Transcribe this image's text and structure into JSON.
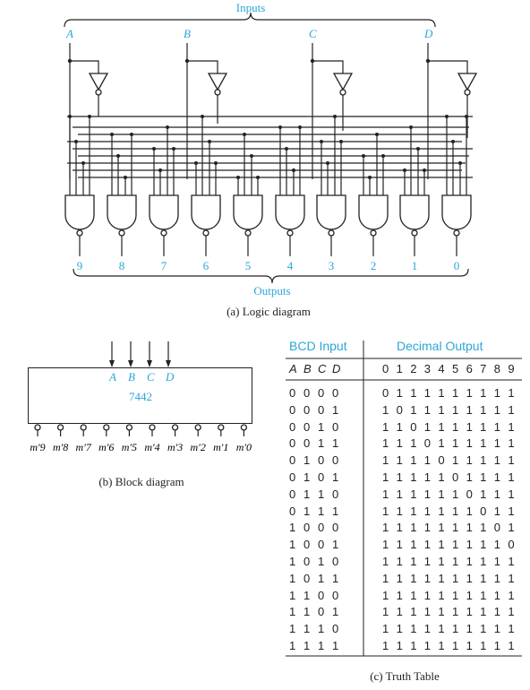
{
  "logic_diagram": {
    "inputs_label": "Inputs",
    "input_names": [
      "A",
      "B",
      "C",
      "D"
    ],
    "outputs_label": "Outputs",
    "output_numbers": [
      "9",
      "8",
      "7",
      "6",
      "5",
      "4",
      "3",
      "2",
      "1",
      "0"
    ],
    "caption": "(a) Logic diagram"
  },
  "block_diagram": {
    "chip": "7442",
    "inputs": [
      "A",
      "B",
      "C",
      "D"
    ],
    "outputs": [
      "m′9",
      "m′8",
      "m′7",
      "m′6",
      "m′5",
      "m′4",
      "m′3",
      "m′2",
      "m′1",
      "m′0"
    ],
    "caption": "(b) Block diagram"
  },
  "truth_table": {
    "bcd_header": "BCD Input",
    "decimal_header": "Decimal Output",
    "bcd_columns": [
      "A",
      "B",
      "C",
      "D"
    ],
    "decimal_columns": [
      "0",
      "1",
      "2",
      "3",
      "4",
      "5",
      "6",
      "7",
      "8",
      "9"
    ],
    "rows": [
      {
        "bcd": [
          "0",
          "0",
          "0",
          "0"
        ],
        "out": [
          "0",
          "1",
          "1",
          "1",
          "1",
          "1",
          "1",
          "1",
          "1",
          "1"
        ]
      },
      {
        "bcd": [
          "0",
          "0",
          "0",
          "1"
        ],
        "out": [
          "1",
          "0",
          "1",
          "1",
          "1",
          "1",
          "1",
          "1",
          "1",
          "1"
        ]
      },
      {
        "bcd": [
          "0",
          "0",
          "1",
          "0"
        ],
        "out": [
          "1",
          "1",
          "0",
          "1",
          "1",
          "1",
          "1",
          "1",
          "1",
          "1"
        ]
      },
      {
        "bcd": [
          "0",
          "0",
          "1",
          "1"
        ],
        "out": [
          "1",
          "1",
          "1",
          "0",
          "1",
          "1",
          "1",
          "1",
          "1",
          "1"
        ]
      },
      {
        "bcd": [
          "0",
          "1",
          "0",
          "0"
        ],
        "out": [
          "1",
          "1",
          "1",
          "1",
          "0",
          "1",
          "1",
          "1",
          "1",
          "1"
        ]
      },
      {
        "bcd": [
          "0",
          "1",
          "0",
          "1"
        ],
        "out": [
          "1",
          "1",
          "1",
          "1",
          "1",
          "0",
          "1",
          "1",
          "1",
          "1"
        ]
      },
      {
        "bcd": [
          "0",
          "1",
          "1",
          "0"
        ],
        "out": [
          "1",
          "1",
          "1",
          "1",
          "1",
          "1",
          "0",
          "1",
          "1",
          "1"
        ]
      },
      {
        "bcd": [
          "0",
          "1",
          "1",
          "1"
        ],
        "out": [
          "1",
          "1",
          "1",
          "1",
          "1",
          "1",
          "1",
          "0",
          "1",
          "1"
        ]
      },
      {
        "bcd": [
          "1",
          "0",
          "0",
          "0"
        ],
        "out": [
          "1",
          "1",
          "1",
          "1",
          "1",
          "1",
          "1",
          "1",
          "0",
          "1"
        ]
      },
      {
        "bcd": [
          "1",
          "0",
          "0",
          "1"
        ],
        "out": [
          "1",
          "1",
          "1",
          "1",
          "1",
          "1",
          "1",
          "1",
          "1",
          "0"
        ]
      },
      {
        "bcd": [
          "1",
          "0",
          "1",
          "0"
        ],
        "out": [
          "1",
          "1",
          "1",
          "1",
          "1",
          "1",
          "1",
          "1",
          "1",
          "1"
        ]
      },
      {
        "bcd": [
          "1",
          "0",
          "1",
          "1"
        ],
        "out": [
          "1",
          "1",
          "1",
          "1",
          "1",
          "1",
          "1",
          "1",
          "1",
          "1"
        ]
      },
      {
        "bcd": [
          "1",
          "1",
          "0",
          "0"
        ],
        "out": [
          "1",
          "1",
          "1",
          "1",
          "1",
          "1",
          "1",
          "1",
          "1",
          "1"
        ]
      },
      {
        "bcd": [
          "1",
          "1",
          "0",
          "1"
        ],
        "out": [
          "1",
          "1",
          "1",
          "1",
          "1",
          "1",
          "1",
          "1",
          "1",
          "1"
        ]
      },
      {
        "bcd": [
          "1",
          "1",
          "1",
          "0"
        ],
        "out": [
          "1",
          "1",
          "1",
          "1",
          "1",
          "1",
          "1",
          "1",
          "1",
          "1"
        ]
      },
      {
        "bcd": [
          "1",
          "1",
          "1",
          "1"
        ],
        "out": [
          "1",
          "1",
          "1",
          "1",
          "1",
          "1",
          "1",
          "1",
          "1",
          "1"
        ]
      }
    ],
    "caption": "(c) Truth Table"
  }
}
